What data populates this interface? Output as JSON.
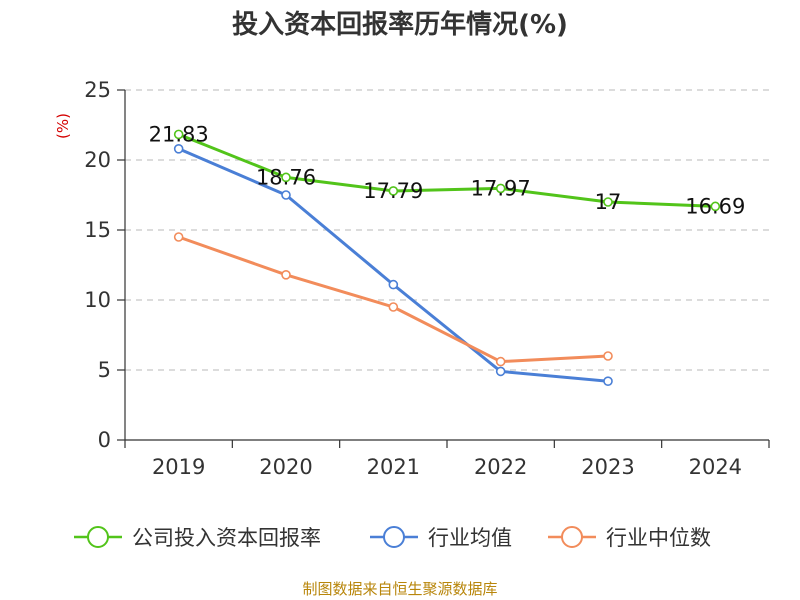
{
  "chart_data": {
    "type": "line",
    "title": "投入资本回报率历年情况(%)",
    "ylabel": "(%)",
    "xlabel": "",
    "categories": [
      "2019",
      "2020",
      "2021",
      "2022",
      "2023",
      "2024"
    ],
    "ylim": [
      0,
      25
    ],
    "yticks": [
      0,
      5,
      10,
      15,
      20,
      25
    ],
    "grid": "dashed-horizontal",
    "legend_position": "bottom",
    "series": [
      {
        "name": "公司投入资本回报率",
        "color": "#52c41a",
        "values": [
          21.83,
          18.76,
          17.79,
          17.97,
          17,
          16.69
        ],
        "labels": [
          "21.83",
          "18.76",
          "17.79",
          "17.97",
          "17",
          "16.69"
        ]
      },
      {
        "name": "行业均值",
        "color": "#4a7fd6",
        "values": [
          20.8,
          17.5,
          11.1,
          4.9,
          4.2,
          null
        ]
      },
      {
        "name": "行业中位数",
        "color": "#f28c5b",
        "values": [
          14.5,
          11.8,
          9.5,
          5.6,
          6.0,
          null
        ]
      }
    ]
  },
  "source": "制图数据来自恒生聚源数据库"
}
